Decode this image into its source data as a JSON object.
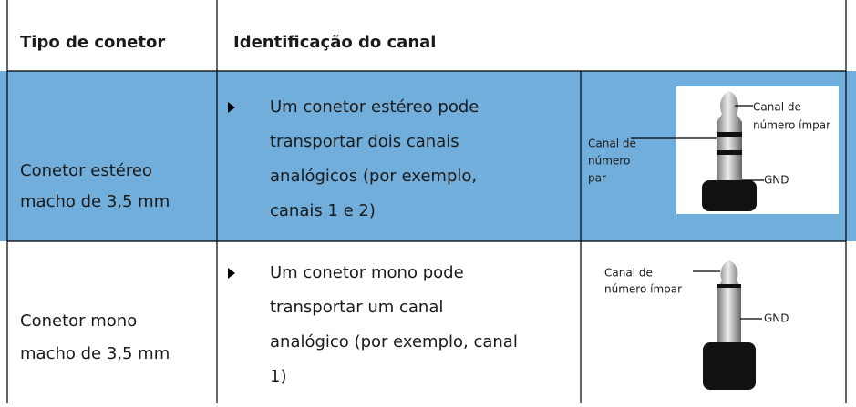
{
  "table": {
    "header": [
      "Tipo de conetor",
      "Identificação do canal"
    ],
    "rows": [
      {
        "connector": [
          "Conetor estéreo",
          "macho de 3,5 mm"
        ],
        "description": [
          "Um conetor estéreo pode",
          "transportar dois canais",
          "analógicos (por exemplo,",
          "canais 1 e 2)"
        ],
        "image_labels": {
          "left": [
            "Canal de",
            "número",
            "par"
          ],
          "right": [
            "Canal de",
            "número ímpar"
          ],
          "ground": "GND"
        }
      },
      {
        "connector": [
          "Conetor mono",
          "macho de 3,5 mm"
        ],
        "description": [
          "Um conetor mono pode",
          "transportar um canal",
          "analógico (por exemplo, canal",
          "1)"
        ],
        "image_labels": {
          "left": [
            "Canal de",
            "número ímpar"
          ],
          "ground": "GND"
        }
      }
    ]
  }
}
